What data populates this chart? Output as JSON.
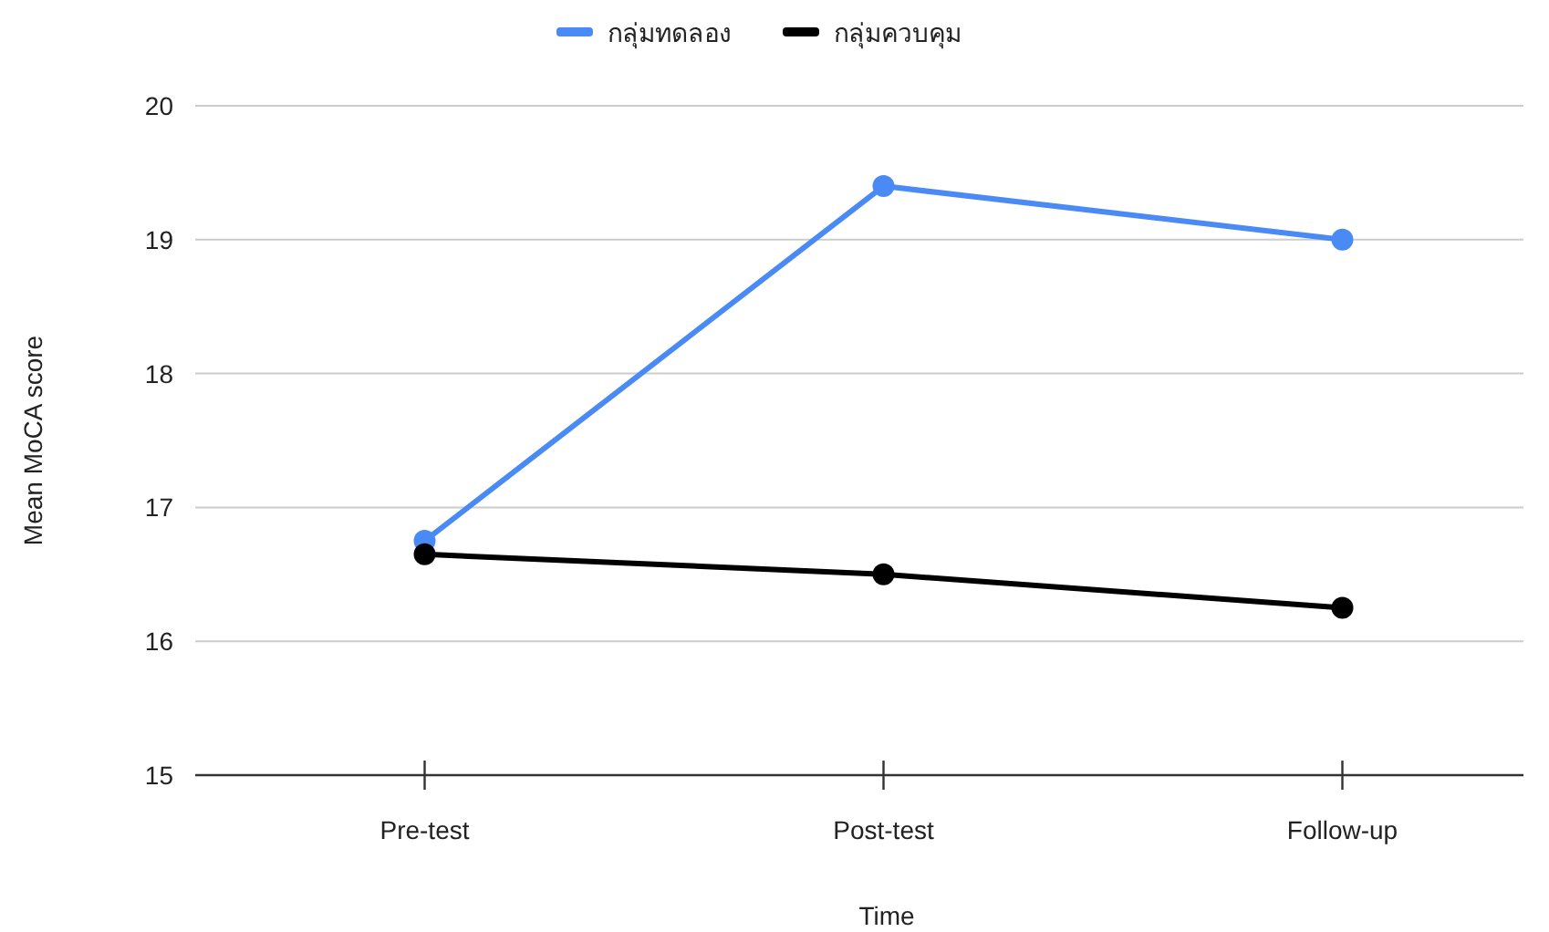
{
  "chart_data": {
    "type": "line",
    "xlabel": "Time",
    "ylabel": "Mean MoCA score",
    "categories": [
      "Pre-test",
      "Post-test",
      "Follow-up"
    ],
    "series": [
      {
        "name": "กลุ่มทดลอง",
        "color": "#4a8af4",
        "values": [
          16.75,
          19.4,
          19.0
        ]
      },
      {
        "name": "กลุ่มควบคุม",
        "color": "#000000",
        "values": [
          16.65,
          16.5,
          16.25
        ]
      }
    ],
    "ylim": [
      15,
      20
    ],
    "yticks": [
      15,
      16,
      17,
      18,
      19,
      20
    ],
    "grid": "y",
    "legend": "top",
    "marker": "circle",
    "line_style": "solid"
  }
}
